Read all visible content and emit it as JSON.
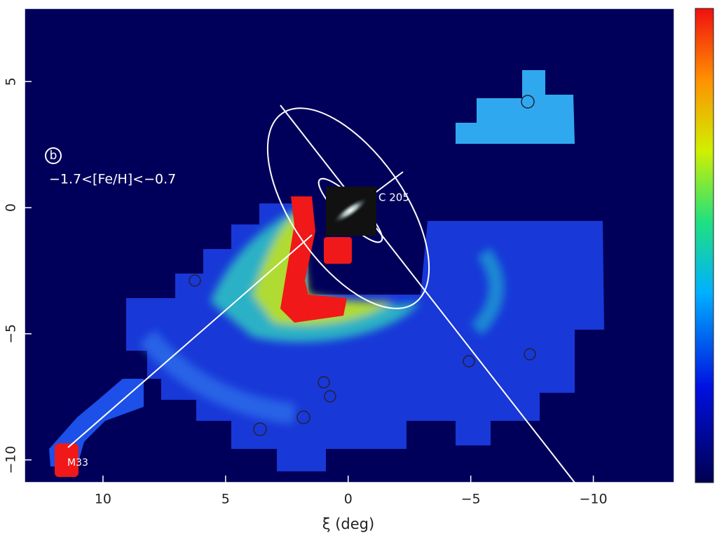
{
  "chart_data": {
    "type": "map",
    "xlabel": "ξ (deg)",
    "xlim": [
      13.2,
      -13.3
    ],
    "ylim": [
      -10.9,
      7.9
    ],
    "xticks": [
      10,
      5,
      0,
      {
        "value": -5,
        "label": "−5"
      },
      {
        "value": -10,
        "label": "−10"
      }
    ],
    "yticks": [
      5,
      0,
      {
        "value": -5,
        "label": "−5"
      },
      {
        "value": -10,
        "label": "−10"
      }
    ],
    "annotations": [
      "b",
      "−1.7<[Fe/H]<−0.7",
      "C 205",
      "M33"
    ],
    "background": "#00005a",
    "colorbar": true
  }
}
